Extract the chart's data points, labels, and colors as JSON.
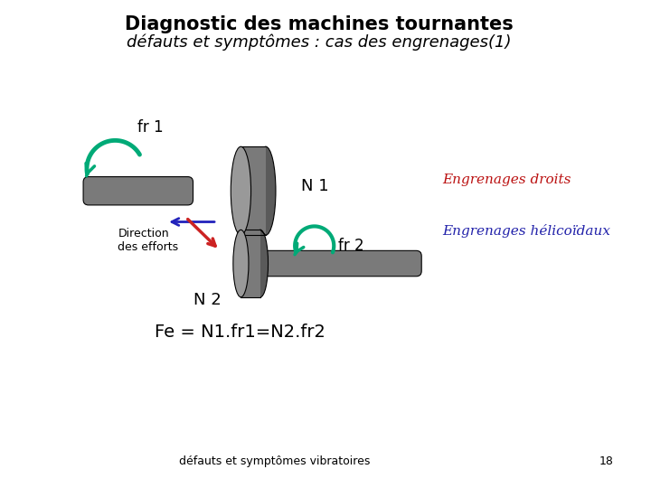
{
  "title_line1": "Diagnostic des machines tournantes",
  "title_line2": "défauts et symptômes : cas des engrenages(1)",
  "label_fr1": "fr 1",
  "label_N1": "N 1",
  "label_N2": "N 2",
  "label_fr2": "fr 2",
  "label_direction": "Direction\ndes efforts",
  "label_engrenages_droits": "Engrenages droits",
  "label_engrenages_helico": "Engrenages hélicoïdaux",
  "label_formula": "Fe = N1.fr1=N2.fr2",
  "label_footer": "défauts et symptômes vibratoires",
  "label_page": "18",
  "gear_color": "#7a7a7a",
  "gear_dark": "#5a5a5a",
  "gear_light": "#999999",
  "arrow_green": "#00aa77",
  "arrow_blue": "#2222bb",
  "arrow_red": "#cc2222",
  "text_red": "#bb1111",
  "text_blue": "#2222aa",
  "bg_color": "#ffffff"
}
